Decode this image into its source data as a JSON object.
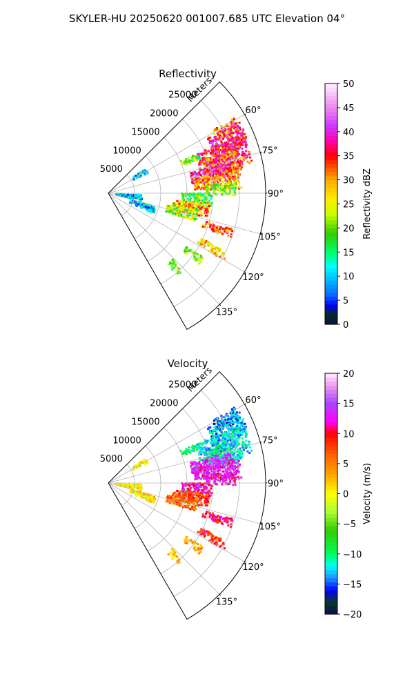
{
  "figure": {
    "title": "SKYLER-HU  20250620  001007.685 UTC Elevation 04°"
  },
  "chart_data": [
    {
      "type": "heatmap",
      "title": "Reflectivity",
      "radial_axis_label": "Meters",
      "radial_ticks": [
        5000,
        10000,
        15000,
        20000,
        25000
      ],
      "radial_tick_labels": [
        "5000",
        "10000",
        "15000",
        "20000",
        "25000"
      ],
      "r_range": [
        0,
        30000
      ],
      "azimuth_range_deg": [
        45,
        150
      ],
      "azimuth_ticks": [
        60,
        75,
        90,
        105,
        120,
        135
      ],
      "azimuth_tick_labels": [
        "60°",
        "75°",
        "90°",
        "105°",
        "120°",
        "135°"
      ],
      "grid": true,
      "colorbar": {
        "label": "Reflectivity dBZ",
        "range": [
          0,
          50
        ],
        "ticks": [
          0,
          5,
          10,
          15,
          20,
          25,
          30,
          35,
          40,
          45,
          50
        ],
        "tick_labels": [
          "0",
          "5",
          "10",
          "15",
          "20",
          "25",
          "30",
          "35",
          "40",
          "45",
          "50"
        ],
        "stops": [
          {
            "v": 0,
            "color": "#0b0b50"
          },
          {
            "v": 2,
            "color": "#0a2a1e"
          },
          {
            "v": 4,
            "color": "#0000ff"
          },
          {
            "v": 6,
            "color": "#0a64ff"
          },
          {
            "v": 9,
            "color": "#00b4ff"
          },
          {
            "v": 12,
            "color": "#00ffff"
          },
          {
            "v": 15,
            "color": "#00ff66"
          },
          {
            "v": 19,
            "color": "#33cc00"
          },
          {
            "v": 23,
            "color": "#ccff00"
          },
          {
            "v": 26,
            "color": "#ffee00"
          },
          {
            "v": 30,
            "color": "#ffaa00"
          },
          {
            "v": 35,
            "color": "#ff0000"
          },
          {
            "v": 38,
            "color": "#ff00aa"
          },
          {
            "v": 41,
            "color": "#cc33ff"
          },
          {
            "v": 45,
            "color": "#ee88ee"
          },
          {
            "v": 50,
            "color": "#ffeeff"
          }
        ]
      }
    },
    {
      "type": "heatmap",
      "title": "Velocity",
      "radial_axis_label": "Meters",
      "radial_ticks": [
        5000,
        10000,
        15000,
        20000,
        25000
      ],
      "radial_tick_labels": [
        "5000",
        "10000",
        "15000",
        "20000",
        "25000"
      ],
      "r_range": [
        0,
        30000
      ],
      "azimuth_range_deg": [
        45,
        150
      ],
      "azimuth_ticks": [
        60,
        75,
        90,
        105,
        120,
        135
      ],
      "azimuth_tick_labels": [
        "60°",
        "75°",
        "90°",
        "105°",
        "120°",
        "135°"
      ],
      "grid": true,
      "colorbar": {
        "label": "Velocity (m/s)",
        "range": [
          -20,
          20
        ],
        "ticks": [
          -20,
          -15,
          -10,
          -5,
          0,
          5,
          10,
          15,
          20
        ],
        "tick_labels": [
          "−20",
          "−15",
          "−10",
          "−5",
          "0",
          "5",
          "10",
          "15",
          "20"
        ],
        "stops": [
          {
            "v": -20,
            "color": "#0b0b50"
          },
          {
            "v": -18,
            "color": "#0a3a2a"
          },
          {
            "v": -16,
            "color": "#0000ff"
          },
          {
            "v": -14,
            "color": "#1e90ff"
          },
          {
            "v": -12,
            "color": "#00ffff"
          },
          {
            "v": -10,
            "color": "#00ff55"
          },
          {
            "v": -6,
            "color": "#33cc00"
          },
          {
            "v": -3,
            "color": "#aaff33"
          },
          {
            "v": 0,
            "color": "#ffff00"
          },
          {
            "v": 3,
            "color": "#ffaa00"
          },
          {
            "v": 7,
            "color": "#ff5500"
          },
          {
            "v": 10,
            "color": "#ff0000"
          },
          {
            "v": 12,
            "color": "#ff00ff"
          },
          {
            "v": 15,
            "color": "#aa44ff"
          },
          {
            "v": 18,
            "color": "#ee99ee"
          },
          {
            "v": 20,
            "color": "#ffeeff"
          }
        ]
      },
      "echo_regions": []
    }
  ],
  "echo_regions": [
    {
      "az": 62,
      "r": 25500,
      "daz": 3,
      "dr": 2500,
      "refl": 30,
      "vel": -15
    },
    {
      "az": 66,
      "r": 25000,
      "daz": 5,
      "dr": 3500,
      "refl": 38,
      "vel": -13
    },
    {
      "az": 72,
      "r": 23000,
      "daz": 6,
      "dr": 5000,
      "refl": 36,
      "vel": -12
    },
    {
      "az": 76,
      "r": 22500,
      "daz": 5,
      "dr": 3500,
      "refl": 33,
      "vel": -12
    },
    {
      "az": 80,
      "r": 20000,
      "daz": 4,
      "dr": 4000,
      "refl": 40,
      "vel": 14
    },
    {
      "az": 84,
      "r": 21000,
      "daz": 4,
      "dr": 4500,
      "refl": 30,
      "vel": 13
    },
    {
      "az": 88,
      "r": 21500,
      "daz": 3,
      "dr": 3000,
      "refl": 20,
      "vel": 12
    },
    {
      "az": 94,
      "r": 17000,
      "daz": 4,
      "dr": 3000,
      "refl": 18,
      "vel": 12
    },
    {
      "az": 100,
      "r": 16000,
      "daz": 4,
      "dr": 3500,
      "refl": 30,
      "vel": 8
    },
    {
      "az": 104,
      "r": 14500,
      "daz": 4,
      "dr": 3000,
      "refl": 22,
      "vel": 6
    },
    {
      "az": 108,
      "r": 22000,
      "daz": 2,
      "dr": 3000,
      "refl": 32,
      "vel": 10
    },
    {
      "az": 118,
      "r": 22500,
      "daz": 2,
      "dr": 3000,
      "refl": 28,
      "vel": 9
    },
    {
      "az": 126,
      "r": 20000,
      "daz": 2,
      "dr": 2000,
      "refl": 20,
      "vel": 3
    },
    {
      "az": 138,
      "r": 19000,
      "daz": 2,
      "dr": 1500,
      "refl": 20,
      "vel": 2
    },
    {
      "az": 68,
      "r": 17000,
      "daz": 2,
      "dr": 2000,
      "refl": 20,
      "vel": -10
    },
    {
      "az": 60,
      "r": 7000,
      "daz": 3,
      "dr": 1500,
      "refl": 11,
      "vel": 1
    },
    {
      "az": 98,
      "r": 4000,
      "daz": 5,
      "dr": 2500,
      "refl": 9,
      "vel": 0
    },
    {
      "az": 110,
      "r": 7000,
      "daz": 4,
      "dr": 2500,
      "refl": 10,
      "vel": 1
    }
  ]
}
